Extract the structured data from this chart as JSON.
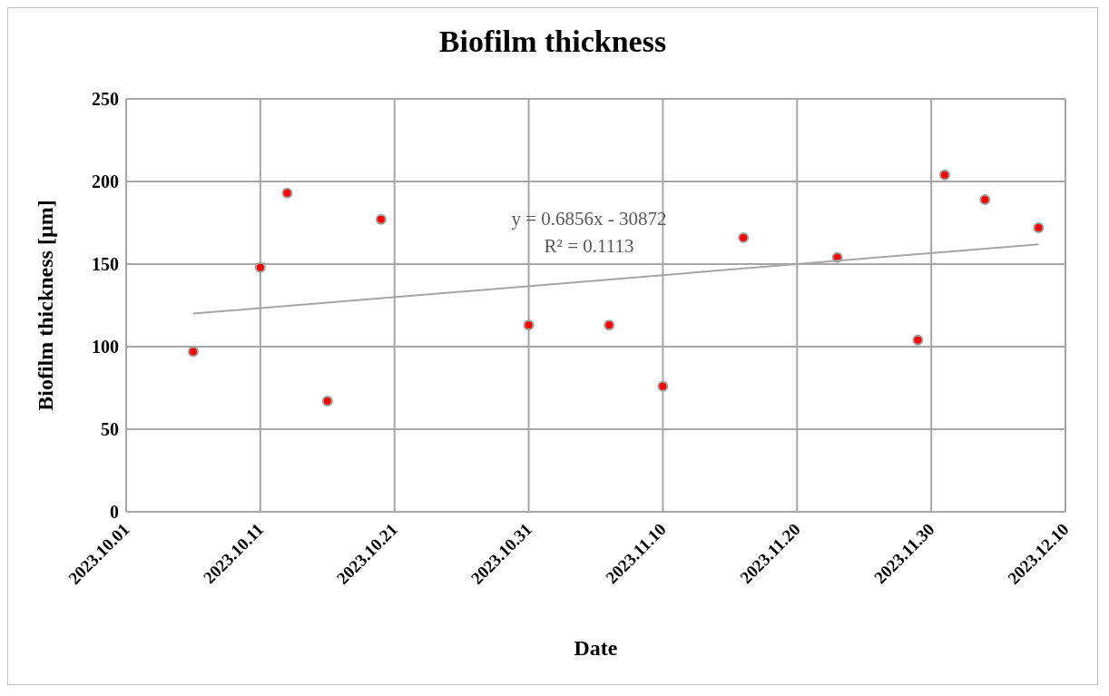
{
  "chart_data": {
    "type": "scatter",
    "title": "Biofilm thickness",
    "xlabel": "Date",
    "ylabel": "Biofilm thickness  [µm]",
    "series": [
      {
        "color": "#ff0000",
        "marker": "circle",
        "x": [
          "2023-10-06",
          "2023-10-11",
          "2023-10-13",
          "2023-10-16",
          "2023-10-20",
          "2023-10-31",
          "2023-11-06",
          "2023-11-10",
          "2023-11-16",
          "2023-11-23",
          "2023-11-29",
          "2023-12-01",
          "2023-12-04",
          "2023-12-08"
        ],
        "values": [
          97,
          148,
          193,
          67,
          177,
          113,
          113,
          76,
          166,
          154,
          104,
          204,
          189,
          172
        ]
      },
      {
        "type": "line",
        "color": "#a5a5a5",
        "x": [
          "2023-10-06",
          "2023-12-08"
        ],
        "values": [
          120,
          162
        ]
      }
    ],
    "xlim": [
      "2023-10-01",
      "2023-12-10"
    ],
    "xticks": [
      {
        "value": "2023-10-01",
        "label": "2023.10.01"
      },
      {
        "value": "2023-10-11",
        "label": "2023.10.11"
      },
      {
        "value": "2023-10-21",
        "label": "2023.10.21"
      },
      {
        "value": "2023-10-31",
        "label": "2023.10.31"
      },
      {
        "value": "2023-11-10",
        "label": "2023.11.10"
      },
      {
        "value": "2023-11-20",
        "label": "2023.11.20"
      },
      {
        "value": "2023-11-30",
        "label": "2023.11.30"
      },
      {
        "value": "2023-12-10",
        "label": "2023.12.10"
      }
    ],
    "ylim": [
      0,
      250
    ],
    "yticks": [
      0,
      50,
      100,
      150,
      200,
      250
    ],
    "grid": true,
    "annotations": [
      "y = 0.6856x  - 30872",
      "R² = 0.1113"
    ]
  }
}
